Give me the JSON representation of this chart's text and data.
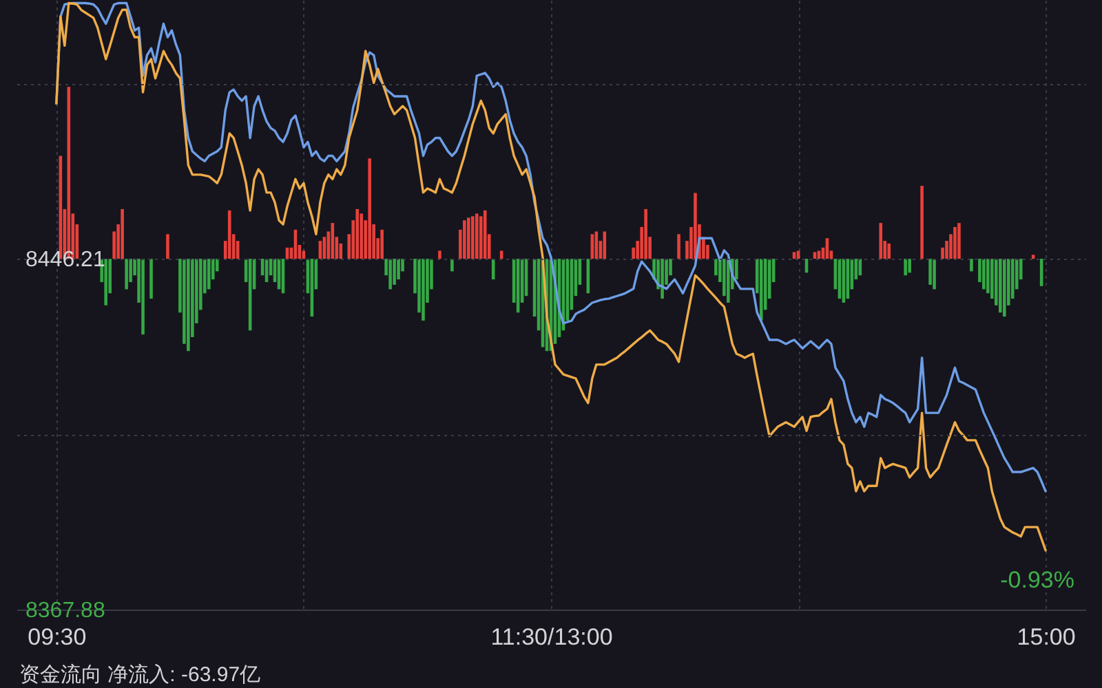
{
  "chart_data": {
    "type": "line",
    "categories": [
      "09:30",
      null,
      null,
      null,
      null,
      null,
      null,
      null,
      null,
      null,
      null,
      null,
      null,
      null,
      null,
      null,
      null,
      null,
      null,
      null,
      null,
      null,
      null,
      null,
      null,
      null,
      null,
      null,
      null,
      null,
      null,
      null,
      null,
      null,
      null,
      null,
      null,
      null,
      null,
      null,
      null,
      null,
      null,
      null,
      null,
      null,
      null,
      null,
      null,
      null,
      null,
      null,
      null,
      null,
      null,
      null,
      null,
      null,
      null,
      null,
      null,
      null,
      null,
      null,
      null,
      null,
      null,
      null,
      null,
      null,
      null,
      null,
      null,
      null,
      null,
      null,
      null,
      null,
      null,
      null,
      null,
      null,
      null,
      null,
      null,
      null,
      null,
      null,
      null,
      null,
      null,
      null,
      null,
      null,
      null,
      null,
      null,
      null,
      null,
      null,
      null,
      null,
      null,
      null,
      null,
      null,
      null,
      null,
      null,
      null,
      null,
      null,
      null,
      null,
      null,
      null,
      null,
      null,
      null,
      null,
      "11:30/13:00",
      null,
      null,
      null,
      null,
      null,
      null,
      null,
      null,
      null,
      null,
      null,
      null,
      null,
      null,
      null,
      null,
      null,
      null,
      null,
      null,
      null,
      null,
      null,
      null,
      null,
      null,
      null,
      null,
      null,
      null,
      null,
      null,
      null,
      null,
      null,
      null,
      null,
      null,
      null,
      null,
      null,
      null,
      null,
      null,
      null,
      null,
      null,
      null,
      null,
      null,
      null,
      null,
      null,
      null,
      null,
      null,
      null,
      null,
      null,
      null,
      null,
      null,
      null,
      null,
      null,
      null,
      null,
      null,
      null,
      null,
      null,
      null,
      null,
      null,
      null,
      null,
      null,
      null,
      null,
      null,
      null,
      null,
      null,
      null,
      null,
      null,
      null,
      null,
      null,
      null,
      null,
      null,
      null,
      null,
      null,
      null,
      null,
      null,
      null,
      null,
      null,
      null,
      null,
      null,
      null,
      null,
      null,
      null,
      null,
      null,
      null,
      null,
      null,
      null,
      null,
      null,
      null,
      null,
      null,
      "15:00"
    ],
    "ylim": [
      8367.88,
      8504
    ],
    "yticks": [
      8367.88,
      {
        "value": 8407.05,
        "label": null
      },
      8446.21,
      {
        "value": 8485.37,
        "label": null
      }
    ],
    "grid": true,
    "annotations": [
      "-0.93%",
      "资金流向 净流入: -63.97亿"
    ],
    "series": [
      {
        "type": "bar",
        "base": [
          null,
          8446.21,
          8446.21,
          8446.21,
          8446.21,
          8446.21,
          null,
          null,
          null,
          null,
          null,
          8446.21,
          8446.21,
          8446.21,
          8446.21,
          8446.21,
          8446.21,
          8446.21,
          8446.21,
          8446.21,
          8446.21,
          8446.21,
          null,
          8446.21,
          null,
          null,
          null,
          8446.21,
          null,
          null,
          8446.21,
          8446.21,
          8446.21,
          8446.21,
          8446.21,
          8446.21,
          8446.21,
          8446.21,
          8446.21,
          8446.21,
          null,
          8446.21,
          8446.21,
          8446.21,
          8446.21,
          null,
          8446.21,
          8446.21,
          8446.21,
          null,
          8446.21,
          8446.21,
          8446.21,
          8446.21,
          8446.21,
          8446.21,
          8446.21,
          8446.21,
          8446.21,
          8446.21,
          8446.21,
          8446.21,
          8446.21,
          8446.21,
          8446.21,
          8446.21,
          8446.21,
          8446.21,
          8446.21,
          8446.21,
          null,
          8446.21,
          8446.21,
          8446.21,
          8446.21,
          8446.21,
          8446.21,
          8446.21,
          8446.21,
          8446.21,
          8446.21,
          8446.21,
          8446.21,
          8446.21,
          8446.21,
          null,
          null,
          8446.21,
          8446.21,
          8446.21,
          8446.21,
          8446.21,
          null,
          8446.21,
          null,
          null,
          8446.21,
          null,
          8446.21,
          8446.21,
          8446.21,
          8446.21,
          8446.21,
          8446.21,
          8446.21,
          8446.21,
          8446.21,
          null,
          8446.21,
          null,
          null,
          8446.21,
          8446.21,
          8446.21,
          8446.21,
          null,
          8446.21,
          8446.21,
          8446.21,
          8446.21,
          8446.21,
          8446.21,
          8446.21,
          8446.21,
          8446.21,
          8446.21,
          8446.21,
          8446.21,
          null,
          8446.21,
          8446.21,
          8446.21,
          8446.21,
          8446.21,
          null,
          null,
          null,
          null,
          null,
          null,
          8446.21,
          8446.21,
          8446.21,
          8446.21,
          8446.21,
          8446.21,
          8446.21,
          8446.21,
          8446.21,
          8446.21,
          null,
          8446.21,
          null,
          8446.21,
          8446.21,
          8446.21,
          8446.21,
          8446.21,
          8446.21,
          null,
          8446.21,
          8446.21,
          8446.21,
          8446.21,
          8446.21,
          8446.21,
          null,
          null,
          null,
          null,
          8446.21,
          8446.21,
          8446.21,
          8446.21,
          8446.21,
          null,
          null,
          null,
          null,
          8446.21,
          8446.21,
          null,
          8446.21,
          null,
          8446.21,
          8446.21,
          8446.21,
          8446.21,
          8446.21,
          8446.21,
          8446.21,
          8446.21,
          8446.21,
          8446.21,
          8446.21,
          8446.21,
          null,
          null,
          null,
          null,
          8446.21,
          8446.21,
          8446.21,
          null,
          null,
          null,
          8446.21,
          8446.21,
          null,
          null,
          8446.21,
          null,
          8446.21,
          8446.21,
          null,
          8446.21,
          8446.21,
          8446.21,
          8446.21,
          8446.21,
          null,
          null,
          8446.21,
          null,
          8446.21,
          8446.21,
          8446.21,
          8446.21,
          8446.21,
          8446.21,
          8446.21,
          8446.21,
          8446.21,
          8446.21,
          8446.21,
          null,
          null,
          8446.21,
          null,
          8446.21,
          null
        ],
        "values": [
          null,
          23.0,
          11.1,
          38.4,
          10.1,
          7.7,
          null,
          null,
          null,
          null,
          null,
          -5.2,
          -10.4,
          -7.7,
          6.1,
          7.7,
          11.1,
          -6.8,
          -5.2,
          -3.7,
          -9.8,
          -16.9,
          null,
          -8.9,
          null,
          null,
          null,
          5.5,
          null,
          null,
          -12.0,
          -19.0,
          -20.6,
          -17.5,
          -14.4,
          -11.4,
          -7.7,
          -6.8,
          -4.6,
          -2.8,
          null,
          4.0,
          10.8,
          5.5,
          4.0,
          null,
          -5.2,
          -16.0,
          -6.8,
          null,
          -3.7,
          -5.2,
          -3.7,
          -5.2,
          -6.8,
          -7.7,
          2.5,
          2.5,
          6.5,
          3.1,
          1.8,
          -7.7,
          -12.9,
          -6.8,
          4.0,
          4.9,
          6.1,
          8.0,
          4.9,
          3.4,
          null,
          5.5,
          8.6,
          11.1,
          10.1,
          8.6,
          22.4,
          7.7,
          4.6,
          6.5,
          -3.7,
          -6.8,
          -5.8,
          -4.6,
          -2.8,
          null,
          null,
          -7.7,
          -12.0,
          -13.8,
          -9.8,
          -6.8,
          null,
          1.8,
          null,
          null,
          -2.8,
          null,
          6.5,
          8.6,
          9.2,
          9.5,
          10.1,
          9.5,
          10.8,
          5.5,
          -4.6,
          null,
          1.8,
          null,
          null,
          -9.8,
          -12.0,
          -9.8,
          -8.3,
          null,
          -12.9,
          -16.0,
          -19.7,
          -20.6,
          -20.6,
          -19.0,
          -17.5,
          -16.0,
          -13.8,
          -11.4,
          -8.3,
          -5.8,
          null,
          -7.7,
          5.5,
          6.1,
          4.0,
          6.1,
          null,
          null,
          null,
          null,
          null,
          null,
          2.5,
          4.0,
          7.1,
          11.1,
          4.9,
          -4.6,
          -6.8,
          -8.9,
          -5.8,
          -3.7,
          null,
          5.5,
          null,
          4.0,
          7.1,
          14.7,
          7.7,
          4.9,
          3.1,
          null,
          -3.7,
          -5.2,
          -8.3,
          -9.8,
          -6.8,
          -4.6,
          null,
          null,
          null,
          null,
          -7.7,
          -13.8,
          -11.4,
          -8.9,
          -5.2,
          null,
          null,
          null,
          null,
          1.5,
          1.8,
          null,
          -3.1,
          null,
          1.5,
          1.8,
          2.5,
          4.6,
          1.8,
          -6.8,
          -8.9,
          -9.8,
          -8.9,
          -6.8,
          -4.6,
          -3.7,
          null,
          null,
          null,
          null,
          8.0,
          4.0,
          3.4,
          null,
          null,
          null,
          -3.7,
          -3.1,
          null,
          null,
          16.3,
          null,
          -5.8,
          -6.8,
          null,
          2.5,
          4.0,
          5.5,
          7.1,
          8.0,
          null,
          null,
          -2.8,
          null,
          -5.2,
          -6.8,
          -7.7,
          -8.9,
          -10.4,
          -12.0,
          -12.9,
          -10.4,
          -8.9,
          -6.8,
          -4.6,
          null,
          null,
          0.9,
          null,
          -6.1,
          null
        ],
        "colors": [
          null,
          "#e8403a",
          "#e8403a",
          "#e8403a",
          "#e8403a",
          "#e8403a",
          null,
          null,
          null,
          null,
          null,
          "#35a845",
          "#35a845",
          "#35a845",
          "#e8403a",
          "#e8403a",
          "#e8403a",
          "#35a845",
          "#35a845",
          "#35a845",
          "#35a845",
          "#35a845",
          null,
          "#35a845",
          null,
          null,
          null,
          "#e8403a",
          null,
          null,
          "#35a845",
          "#35a845",
          "#35a845",
          "#35a845",
          "#35a845",
          "#35a845",
          "#35a845",
          "#35a845",
          "#35a845",
          "#35a845",
          null,
          "#e8403a",
          "#e8403a",
          "#e8403a",
          "#e8403a",
          null,
          "#35a845",
          "#35a845",
          "#35a845",
          null,
          "#35a845",
          "#35a845",
          "#35a845",
          "#35a845",
          "#35a845",
          "#35a845",
          "#e8403a",
          "#e8403a",
          "#e8403a",
          "#e8403a",
          "#e8403a",
          "#35a845",
          "#35a845",
          "#35a845",
          "#e8403a",
          "#e8403a",
          "#e8403a",
          "#e8403a",
          "#e8403a",
          "#e8403a",
          null,
          "#e8403a",
          "#e8403a",
          "#e8403a",
          "#e8403a",
          "#e8403a",
          "#e8403a",
          "#e8403a",
          "#e8403a",
          "#e8403a",
          "#35a845",
          "#35a845",
          "#35a845",
          "#35a845",
          "#35a845",
          null,
          null,
          "#35a845",
          "#35a845",
          "#35a845",
          "#35a845",
          "#35a845",
          null,
          "#e8403a",
          null,
          null,
          "#35a845",
          null,
          "#e8403a",
          "#e8403a",
          "#e8403a",
          "#e8403a",
          "#e8403a",
          "#e8403a",
          "#e8403a",
          "#e8403a",
          "#35a845",
          null,
          "#e8403a",
          null,
          null,
          "#35a845",
          "#35a845",
          "#35a845",
          "#35a845",
          null,
          "#35a845",
          "#35a845",
          "#35a845",
          "#35a845",
          "#35a845",
          "#35a845",
          "#35a845",
          "#35a845",
          "#35a845",
          "#35a845",
          "#35a845",
          "#35a845",
          null,
          "#35a845",
          "#e8403a",
          "#e8403a",
          "#e8403a",
          "#e8403a",
          null,
          null,
          null,
          null,
          null,
          null,
          "#e8403a",
          "#e8403a",
          "#e8403a",
          "#e8403a",
          "#e8403a",
          "#35a845",
          "#35a845",
          "#35a845",
          "#35a845",
          "#35a845",
          null,
          "#e8403a",
          null,
          "#e8403a",
          "#e8403a",
          "#e8403a",
          "#e8403a",
          "#e8403a",
          "#e8403a",
          null,
          "#35a845",
          "#35a845",
          "#35a845",
          "#35a845",
          "#35a845",
          "#35a845",
          null,
          null,
          null,
          null,
          "#35a845",
          "#35a845",
          "#35a845",
          "#35a845",
          "#35a845",
          null,
          null,
          null,
          null,
          "#e8403a",
          "#e8403a",
          null,
          "#35a845",
          null,
          "#e8403a",
          "#e8403a",
          "#e8403a",
          "#e8403a",
          "#e8403a",
          "#35a845",
          "#35a845",
          "#35a845",
          "#35a845",
          "#35a845",
          "#35a845",
          "#35a845",
          null,
          null,
          null,
          null,
          "#e8403a",
          "#e8403a",
          "#e8403a",
          null,
          null,
          null,
          "#35a845",
          "#35a845",
          null,
          null,
          "#e8403a",
          null,
          "#35a845",
          "#35a845",
          null,
          "#e8403a",
          "#e8403a",
          "#e8403a",
          "#e8403a",
          "#e8403a",
          null,
          null,
          "#35a845",
          null,
          "#35a845",
          "#35a845",
          "#35a845",
          "#35a845",
          "#35a845",
          "#35a845",
          "#35a845",
          "#35a845",
          "#35a845",
          "#35a845",
          "#35a845",
          null,
          null,
          "#e8403a",
          null,
          "#35a845",
          null
        ]
      },
      {
        "color": "#6e9ee6",
        "values": [
          8480.9,
          8500.3,
          8503.0,
          8503.2,
          8503.3,
          8503.3,
          8503.3,
          8503.3,
          8503.2,
          8503.0,
          8502.1,
          8500.3,
          8498.7,
          8500.9,
          8503.0,
          8503.3,
          8503.3,
          8503.3,
          8500.3,
          8497.2,
          8497.8,
          8487.1,
          8491.7,
          8493.2,
          8490.1,
          8494.7,
          8498.7,
          8495.7,
          8497.2,
          8494.1,
          8491.7,
          8479.4,
          8473.2,
          8470.2,
          8469.4,
          8468.6,
          8468.0,
          8469.2,
          8469.7,
          8470.2,
          8471.1,
          8479.4,
          8483.4,
          8484.0,
          8482.5,
          8481.5,
          8482.5,
          8473.2,
          8480.3,
          8482.5,
          8479.4,
          8476.9,
          8475.4,
          8474.8,
          8473.2,
          8472.3,
          8474.2,
          8477.2,
          8478.2,
          8474.8,
          8471.1,
          8472.3,
          8469.2,
          8470.2,
          8468.6,
          8468.0,
          8469.2,
          8469.2,
          8468.0,
          8469.1,
          8470.2,
          8474.2,
          8480.0,
          8483.1,
          8486.1,
          8490.1,
          8492.3,
          8491.7,
          8487.1,
          8485.6,
          8484.0,
          8483.3,
          8482.5,
          8482.5,
          8482.5,
          8482.5,
          8479.4,
          8476.8,
          8474.2,
          8469.2,
          8471.7,
          8472.3,
          8473.2,
          8473.2,
          8471.7,
          8470.2,
          8469.2,
          8470.2,
          8472.3,
          8474.8,
          8477.2,
          8480.3,
          8487.1,
          8487.4,
          8487.7,
          8486.5,
          8484.6,
          8485.5,
          8484.6,
          8481.5,
          8477.2,
          8474.2,
          8472.3,
          8471.1,
          8469.2,
          8465.0,
          8458.8,
          8454.8,
          8450.8,
          8449.3,
          8446.5,
          8441.0,
          8434.8,
          8431.8,
          8432.1,
          8432.4,
          8433.9,
          8434.4,
          8434.8,
          8435.6,
          8436.4,
          8436.7,
          8437.0,
          8437.2,
          8437.3,
          8437.6,
          8437.9,
          8438.2,
          8438.5,
          8439.0,
          8439.5,
          8443.4,
          8445.6,
          8444.5,
          8443.4,
          8441.9,
          8440.4,
          8440.0,
          8439.5,
          8440.6,
          8441.6,
          8440.1,
          8438.5,
          8440.6,
          8442.6,
          8444.7,
          8450.8,
          8450.8,
          8450.8,
          8450.8,
          8448.4,
          8445.9,
          8448.1,
          8447.1,
          8442.5,
          8441.0,
          8439.5,
          8439.5,
          8439.5,
          8439.5,
          8434.2,
          8432.2,
          8430.2,
          8428.1,
          8428.1,
          8428.1,
          8427.7,
          8427.2,
          8427.7,
          8428.1,
          8427.2,
          8426.2,
          8427.0,
          8427.8,
          8427.0,
          8426.2,
          8427.2,
          8428.1,
          8427.2,
          8421.9,
          8420.4,
          8418.9,
          8414.9,
          8411.8,
          8409.7,
          8410.9,
          8408.7,
          8411.8,
          8411.4,
          8410.9,
          8415.8,
          8414.9,
          8414.5,
          8414.0,
          8413.3,
          8412.5,
          8411.8,
          8409.7,
          8411.2,
          8412.7,
          8424.1,
          8411.8,
          8411.8,
          8411.8,
          8411.8,
          8413.8,
          8415.8,
          8418.9,
          8421.9,
          8418.9,
          8418.5,
          8418.0,
          8417.5,
          8417.0,
          8414.4,
          8411.8,
          8409.8,
          8407.8,
          8405.8,
          8403.7,
          8401.7,
          8400.2,
          8398.6,
          8398.6,
          8398.6,
          8398.9,
          8399.2,
          8399.5,
          8398.6,
          8396.5,
          8394.3
        ]
      },
      {
        "color": "#f0ac48",
        "values": [
          8480.9,
          8500.3,
          8493.8,
          8503.3,
          8503.2,
          8503.0,
          8501.8,
          8501.2,
          8500.6,
          8500.0,
          8497.8,
          8494.3,
          8490.8,
          8493.8,
          8496.9,
          8500.0,
          8501.8,
          8501.8,
          8497.8,
          8495.7,
          8495.7,
          8483.4,
          8489.5,
          8490.8,
          8486.5,
          8489.5,
          8492.6,
          8490.8,
          8489.5,
          8487.7,
          8486.5,
          8477.2,
          8467.1,
          8465.0,
          8465.0,
          8465.0,
          8464.8,
          8464.6,
          8463.9,
          8463.1,
          8465.0,
          8469.6,
          8474.2,
          8473.2,
          8470.2,
          8467.1,
          8463.1,
          8457.0,
          8464.0,
          8466.2,
          8465.0,
          8461.0,
          8461.0,
          8458.8,
          8454.8,
          8453.9,
          8457.9,
          8461.0,
          8464.0,
          8461.9,
          8463.1,
          8458.8,
          8455.7,
          8451.7,
          8458.8,
          8463.1,
          8465.0,
          8464.0,
          8466.2,
          8465.0,
          8467.1,
          8473.2,
          8476.3,
          8479.4,
          8485.5,
          8492.6,
          8489.5,
          8485.5,
          8488.6,
          8485.8,
          8483.1,
          8480.3,
          8478.5,
          8479.4,
          8480.3,
          8479.4,
          8476.3,
          8473.2,
          8467.1,
          8461.0,
          8461.9,
          8461.5,
          8461.0,
          8464.0,
          8461.9,
          8461.5,
          8461.0,
          8463.1,
          8466.2,
          8469.2,
          8472.8,
          8476.3,
          8478.9,
          8481.5,
          8479.4,
          8475.4,
          8474.2,
          8476.3,
          8477.4,
          8478.5,
          8473.2,
          8469.2,
          8467.1,
          8465.0,
          8466.2,
          8463.1,
          8460.0,
          8452.7,
          8446.5,
          8433.3,
          8428.0,
          8422.6,
          8421.5,
          8420.4,
          8420.1,
          8419.8,
          8419.5,
          8417.5,
          8415.5,
          8414.0,
          8419.5,
          8422.6,
          8422.6,
          8422.6,
          8423.1,
          8423.6,
          8424.1,
          8424.9,
          8425.6,
          8426.4,
          8427.2,
          8428.0,
          8428.7,
          8429.5,
          8430.2,
          8429.2,
          8428.1,
          8427.7,
          8427.2,
          8426.1,
          8425.0,
          8423.2,
          8428.1,
          8432.9,
          8437.7,
          8442.5,
          8441.6,
          8440.6,
          8439.5,
          8438.5,
          8437.5,
          8436.4,
          8435.5,
          8431.4,
          8427.2,
          8425.0,
          8424.6,
          8424.1,
          8424.6,
          8425.0,
          8420.1,
          8415.5,
          8410.9,
          8406.6,
          8407.7,
          8408.7,
          8409.2,
          8409.7,
          8409.2,
          8408.7,
          8409.8,
          8410.9,
          8407.8,
          8410.9,
          8411.1,
          8411.2,
          8412.0,
          8412.7,
          8414.9,
          8409.7,
          8405.7,
          8404.7,
          8400.4,
          8399.5,
          8394.3,
          8396.5,
          8394.3,
          8395.5,
          8395.5,
          8395.5,
          8401.7,
          8399.5,
          8400.0,
          8400.4,
          8400.1,
          8399.8,
          8399.5,
          8397.4,
          8398.5,
          8399.5,
          8411.8,
          8399.5,
          8397.4,
          8398.5,
          8399.5,
          8402.1,
          8404.7,
          8407.2,
          8409.7,
          8407.8,
          8406.8,
          8405.7,
          8405.7,
          8405.7,
          8403.5,
          8401.5,
          8399.5,
          8394.3,
          8391.2,
          8388.2,
          8386.3,
          8385.7,
          8385.1,
          8384.7,
          8384.2,
          8386.3,
          8386.3,
          8386.3,
          8386.3,
          8383.7,
          8381.1
        ]
      }
    ]
  }
}
